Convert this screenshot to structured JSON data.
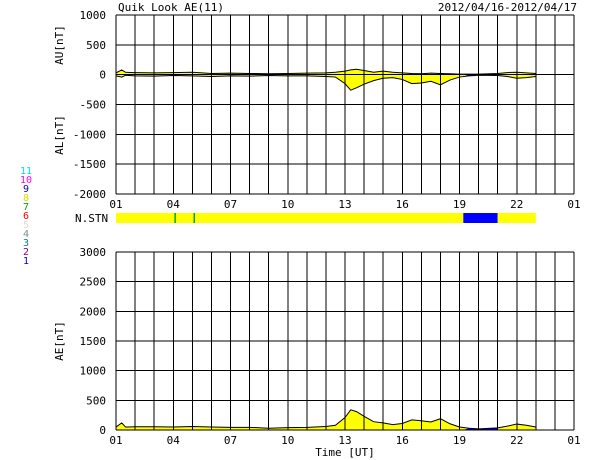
{
  "header": {
    "title": "Quik Look AE(11)",
    "date_range": "2012/04/16-2012/04/17"
  },
  "colors": {
    "above_threshold": "#ffff00",
    "below_threshold": "#0000ff",
    "grid": "#000000",
    "trace": "#000000",
    "station_markers": "#00aa00"
  },
  "station_count_legend": [
    {
      "label": "11",
      "color": "#00e0e0"
    },
    {
      "label": "10",
      "color": "#ff00ff"
    },
    {
      "label": "9",
      "color": "#0000cc"
    },
    {
      "label": "8",
      "color": "#dddd00"
    },
    {
      "label": "7",
      "color": "#00aa00"
    },
    {
      "label": "6",
      "color": "#ff0000"
    },
    {
      "label": "5",
      "color": "#dddddd"
    },
    {
      "label": "4",
      "color": "#888888"
    },
    {
      "label": "3",
      "color": "#008888"
    },
    {
      "label": "2",
      "color": "#880088"
    },
    {
      "label": "1",
      "color": "#0000cc"
    }
  ],
  "chart_data": [
    {
      "type": "area",
      "panel": "AU/AL",
      "ylabel_upper": "AU[nT]",
      "ylabel_lower": "AL[nT]",
      "ylim": [
        -2000,
        1000
      ],
      "yticks": [
        "1000",
        "500",
        "0",
        "-500",
        "-1000",
        "-1500",
        "-2000"
      ],
      "ytick_values": [
        1000,
        500,
        0,
        -500,
        -1000,
        -1500,
        -2000
      ],
      "xlim_hours": [
        0,
        24
      ],
      "xtick_labels": [
        "01",
        "04",
        "07",
        "10",
        "13",
        "16",
        "19",
        "22",
        "01"
      ],
      "xtick_hours": [
        0,
        3,
        6,
        9,
        12,
        15,
        18,
        21,
        24
      ],
      "grid": true,
      "series": [
        {
          "name": "AU",
          "x_hours": [
            0,
            0.3,
            0.5,
            1,
            2,
            3,
            4,
            5,
            6,
            7,
            8,
            9,
            10,
            11,
            11.5,
            12,
            12.3,
            12.6,
            13,
            13.5,
            14,
            14.5,
            15,
            15.5,
            16,
            16.5,
            17,
            17.5,
            18,
            18.5,
            19,
            20,
            20.5,
            21,
            21.5,
            22
          ],
          "values": [
            30,
            80,
            40,
            35,
            30,
            35,
            40,
            20,
            25,
            20,
            15,
            20,
            25,
            30,
            40,
            60,
            80,
            90,
            70,
            40,
            60,
            40,
            30,
            20,
            15,
            25,
            20,
            15,
            10,
            10,
            10,
            20,
            35,
            40,
            30,
            20
          ]
        },
        {
          "name": "AL",
          "x_hours": [
            0,
            0.3,
            0.5,
            1,
            2,
            3,
            4,
            5,
            6,
            7,
            8,
            9,
            10,
            11,
            11.5,
            12,
            12.3,
            12.6,
            13,
            13.5,
            14,
            14.5,
            15,
            15.5,
            16,
            16.5,
            17,
            17.5,
            18,
            18.5,
            19,
            20,
            20.5,
            21,
            21.5,
            22
          ],
          "values": [
            -20,
            -40,
            -10,
            -20,
            -25,
            -15,
            -20,
            -30,
            -20,
            -25,
            -15,
            -20,
            -20,
            -30,
            -40,
            -150,
            -260,
            -220,
            -160,
            -100,
            -60,
            -50,
            -80,
            -150,
            -140,
            -110,
            -170,
            -90,
            -40,
            -20,
            -10,
            -15,
            -30,
            -60,
            -50,
            -30
          ]
        }
      ]
    },
    {
      "type": "area",
      "panel": "AE",
      "ylabel": "AE[nT]",
      "xlabel": "Time [UT]",
      "ylim": [
        0,
        3000
      ],
      "yticks": [
        "3000",
        "2500",
        "2000",
        "1500",
        "1000",
        "500",
        "0"
      ],
      "ytick_values": [
        3000,
        2500,
        2000,
        1500,
        1000,
        500,
        0
      ],
      "xlim_hours": [
        0,
        24
      ],
      "xtick_labels": [
        "01",
        "04",
        "07",
        "10",
        "13",
        "16",
        "19",
        "22",
        "01"
      ],
      "xtick_hours": [
        0,
        3,
        6,
        9,
        12,
        15,
        18,
        21,
        24
      ],
      "grid": true,
      "series": [
        {
          "name": "AE",
          "x_hours": [
            0,
            0.3,
            0.5,
            1,
            2,
            3,
            4,
            5,
            6,
            7,
            8,
            9,
            10,
            11,
            11.5,
            12,
            12.3,
            12.6,
            13,
            13.5,
            14,
            14.5,
            15,
            15.5,
            16,
            16.5,
            17,
            17.5,
            18,
            18.5,
            19,
            20,
            20.5,
            21,
            21.5,
            22
          ],
          "values": [
            50,
            120,
            50,
            55,
            55,
            50,
            60,
            50,
            45,
            45,
            30,
            40,
            45,
            60,
            80,
            210,
            340,
            310,
            230,
            140,
            120,
            90,
            110,
            170,
            155,
            135,
            190,
            105,
            50,
            30,
            20,
            35,
            65,
            100,
            80,
            50
          ]
        }
      ]
    },
    {
      "type": "bar",
      "panel": "station_count",
      "label": "N.STN",
      "xlim_hours": [
        0,
        24
      ],
      "segments": [
        {
          "start": 0,
          "end": 18.2,
          "color": "#ffff00"
        },
        {
          "start": 18.2,
          "end": 20.0,
          "color": "#0000ff"
        },
        {
          "start": 20.0,
          "end": 22.0,
          "color": "#ffff00"
        }
      ],
      "markers": [
        {
          "hour": 3.1,
          "color": "#00aa00"
        },
        {
          "hour": 4.1,
          "color": "#00aa00"
        }
      ]
    }
  ]
}
